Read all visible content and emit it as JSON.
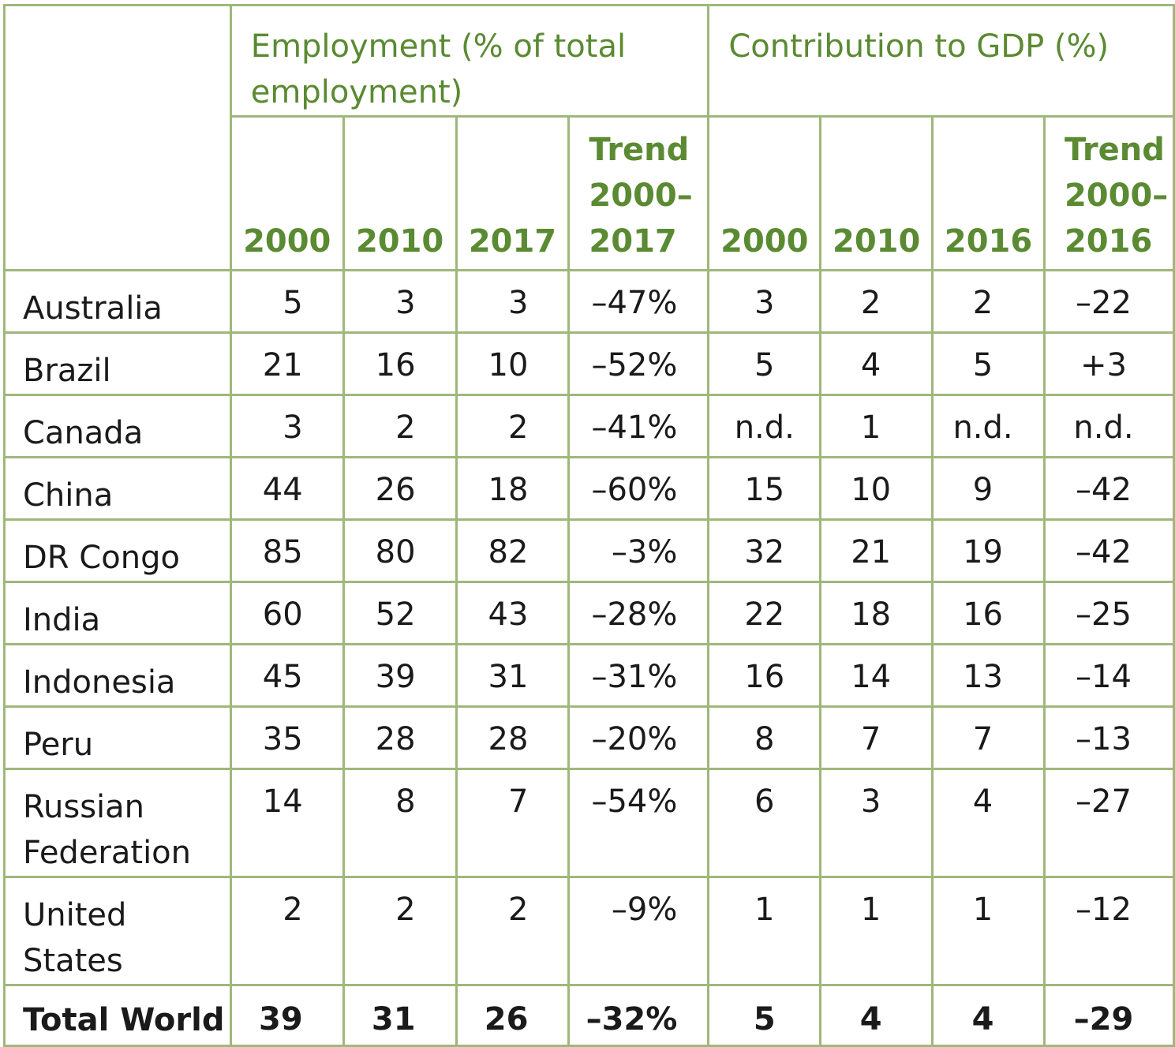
{
  "header": {
    "employment_group": "Employment (% of total employment)",
    "gdp_group": "Contribution to GDP (%)",
    "emp_years": [
      "2000",
      "2010",
      "2017"
    ],
    "emp_trend": [
      "Trend",
      "2000–",
      "2017"
    ],
    "gdp_years": [
      "2000",
      "2010",
      "2016"
    ],
    "gdp_trend": [
      "Trend",
      "2000–",
      "2016"
    ]
  },
  "rows": [
    {
      "country": [
        "Australia"
      ],
      "e2000": "5",
      "e2010": "3",
      "e2017": "3",
      "etrend": "–47%",
      "g2000": "3",
      "g2010": "2",
      "g2016": "2",
      "gtrend": "–22"
    },
    {
      "country": [
        "Brazil"
      ],
      "e2000": "21",
      "e2010": "16",
      "e2017": "10",
      "etrend": "–52%",
      "g2000": "5",
      "g2010": "4",
      "g2016": "5",
      "gtrend": "+3"
    },
    {
      "country": [
        "Canada"
      ],
      "e2000": "3",
      "e2010": "2",
      "e2017": "2",
      "etrend": "–41%",
      "g2000": "n.d.",
      "g2010": "1",
      "g2016": "n.d.",
      "gtrend": "n.d."
    },
    {
      "country": [
        "China"
      ],
      "e2000": "44",
      "e2010": "26",
      "e2017": "18",
      "etrend": "–60%",
      "g2000": "15",
      "g2010": "10",
      "g2016": "9",
      "gtrend": "–42"
    },
    {
      "country": [
        "DR Congo"
      ],
      "e2000": "85",
      "e2010": "80",
      "e2017": "82",
      "etrend": "–3%",
      "g2000": "32",
      "g2010": "21",
      "g2016": "19",
      "gtrend": "–42"
    },
    {
      "country": [
        "India"
      ],
      "e2000": "60",
      "e2010": "52",
      "e2017": "43",
      "etrend": "–28%",
      "g2000": "22",
      "g2010": "18",
      "g2016": "16",
      "gtrend": "–25"
    },
    {
      "country": [
        "Indonesia"
      ],
      "e2000": "45",
      "e2010": "39",
      "e2017": "31",
      "etrend": "–31%",
      "g2000": "16",
      "g2010": "14",
      "g2016": "13",
      "gtrend": "–14"
    },
    {
      "country": [
        "Peru"
      ],
      "e2000": "35",
      "e2010": "28",
      "e2017": "28",
      "etrend": "–20%",
      "g2000": "8",
      "g2010": "7",
      "g2016": "7",
      "gtrend": "–13"
    },
    {
      "country": [
        "Russian",
        "Federation"
      ],
      "e2000": "14",
      "e2010": "8",
      "e2017": "7",
      "etrend": "–54%",
      "g2000": "6",
      "g2010": "3",
      "g2016": "4",
      "gtrend": "–27"
    },
    {
      "country": [
        "United States"
      ],
      "e2000": "2",
      "e2010": "2",
      "e2017": "2",
      "etrend": "–9%",
      "g2000": "1",
      "g2010": "1",
      "g2016": "1",
      "gtrend": "–12"
    }
  ],
  "total": {
    "country": "Total World",
    "e2000": "39",
    "e2010": "31",
    "e2017": "26",
    "etrend": "–32%",
    "g2000": "5",
    "g2010": "4",
    "g2016": "4",
    "gtrend": "–29"
  }
}
